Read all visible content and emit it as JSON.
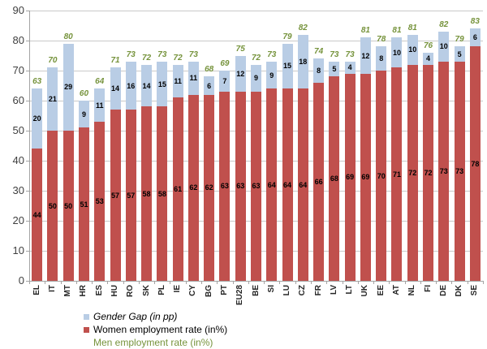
{
  "chart_data": {
    "type": "bar",
    "stacked": true,
    "title": "",
    "xlabel": "",
    "ylabel": "",
    "ylim": [
      0,
      90
    ],
    "ytick_step": 10,
    "grid": true,
    "legend_position": "bottom-left",
    "categories": [
      "EL",
      "IT",
      "MT",
      "HR",
      "ES",
      "HU",
      "RO",
      "SK",
      "PL",
      "IE",
      "CY",
      "BG",
      "PT",
      "EU28",
      "BE",
      "SI",
      "LU",
      "CZ",
      "FR",
      "LV",
      "LT",
      "UK",
      "EE",
      "AT",
      "NL",
      "FI",
      "DE",
      "DK",
      "SE"
    ],
    "series": [
      {
        "name": "Women employment rate (in%)",
        "color": "#C0504D",
        "label_color": "#000000",
        "values": [
          44,
          50,
          50,
          51,
          53,
          57,
          57,
          58,
          58,
          61,
          62,
          62,
          63,
          63,
          63,
          64,
          64,
          64,
          66,
          68,
          69,
          69,
          70,
          71,
          72,
          72,
          73,
          73,
          78
        ]
      },
      {
        "name": "Gender Gap (in pp)",
        "color": "#B9CDE5",
        "label_color": "#000000",
        "values": [
          20,
          21,
          29,
          9,
          11,
          14,
          16,
          14,
          15,
          11,
          11,
          6,
          7,
          12,
          9,
          9,
          15,
          18,
          8,
          5,
          4,
          12,
          8,
          10,
          10,
          4,
          10,
          5,
          6
        ]
      }
    ],
    "totals_series": {
      "name": "Men employment rate (in%)",
      "color": "#76933C",
      "values": [
        63,
        70,
        80,
        60,
        64,
        71,
        73,
        72,
        73,
        72,
        73,
        68,
        69,
        75,
        72,
        73,
        79,
        82,
        74,
        73,
        73,
        81,
        78,
        81,
        81,
        76,
        82,
        79,
        83
      ]
    }
  },
  "legend": {
    "items": [
      {
        "label": "Gender Gap (in pp)",
        "swatch": "#B9CDE5",
        "text_color": "#000000",
        "italic": true
      },
      {
        "label": "Women employment rate (in%)",
        "swatch": "#C0504D",
        "text_color": "#000000",
        "italic": false
      },
      {
        "label": "Men employment rate (in%)",
        "swatch": null,
        "text_color": "#76933C",
        "italic": false
      }
    ]
  }
}
